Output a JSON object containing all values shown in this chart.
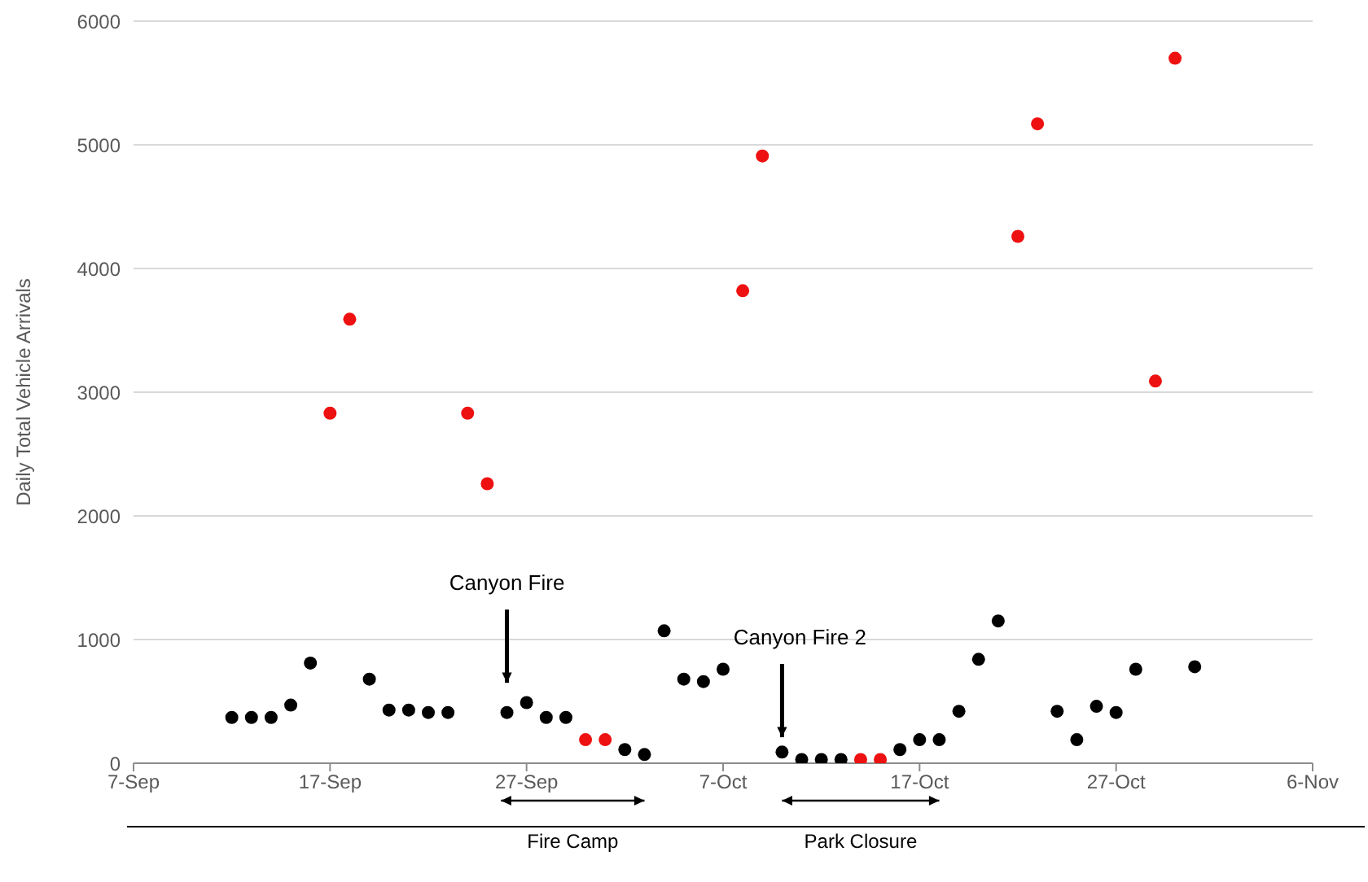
{
  "chart_data": {
    "type": "scatter",
    "ylabel": "Daily Total Vehicle Arrivals",
    "x": [
      "--09-12",
      "--09-13",
      "--09-14",
      "--09-15",
      "--09-16",
      "--09-17",
      "--09-18",
      "--09-19",
      "--09-20",
      "--09-21",
      "--09-22",
      "--09-23",
      "--09-24",
      "--09-25",
      "--09-26",
      "--09-27",
      "--09-28",
      "--09-29",
      "--09-30",
      "--10-01",
      "--10-02",
      "--10-03",
      "--10-04",
      "--10-05",
      "--10-06",
      "--10-07",
      "--10-08",
      "--10-09",
      "--10-10",
      "--10-11",
      "--10-12",
      "--10-13",
      "--10-14",
      "--10-15",
      "--10-16",
      "--10-17",
      "--10-18",
      "--10-19",
      "--10-20",
      "--10-21",
      "--10-22",
      "--10-23",
      "--10-24",
      "--10-25",
      "--10-26",
      "--10-27",
      "--10-28",
      "--10-29",
      "--10-30",
      "--10-31"
    ],
    "series": [
      {
        "color": "#000000",
        "values": [
          370,
          370,
          370,
          470,
          810,
          null,
          null,
          680,
          430,
          430,
          410,
          410,
          null,
          null,
          410,
          490,
          370,
          370,
          null,
          null,
          110,
          70,
          1070,
          680,
          660,
          760,
          null,
          null,
          90,
          30,
          30,
          30,
          null,
          null,
          110,
          190,
          190,
          420,
          840,
          1150,
          null,
          null,
          420,
          190,
          460,
          410,
          760,
          null,
          null,
          780
        ]
      },
      {
        "color": "#ee1111",
        "values": [
          null,
          null,
          null,
          null,
          null,
          2830,
          3590,
          null,
          null,
          null,
          null,
          null,
          2830,
          2260,
          null,
          null,
          null,
          null,
          190,
          190,
          null,
          null,
          null,
          null,
          null,
          null,
          3820,
          4910,
          null,
          null,
          null,
          null,
          30,
          30,
          null,
          null,
          null,
          null,
          null,
          null,
          4260,
          5170,
          null,
          null,
          null,
          null,
          null,
          3090,
          5700,
          null
        ]
      }
    ],
    "xlim": [
      "--09-07",
      "--11-06"
    ],
    "xticks": [
      {
        "value": "--09-07",
        "label": "7-Sep"
      },
      {
        "value": "--09-17",
        "label": "17-Sep"
      },
      {
        "value": "--09-27",
        "label": "27-Sep"
      },
      {
        "value": "--10-07",
        "label": "7-Oct"
      },
      {
        "value": "--10-17",
        "label": "17-Oct"
      },
      {
        "value": "--10-27",
        "label": "27-Oct"
      },
      {
        "value": "--11-06",
        "label": "6-Nov"
      }
    ],
    "ylim": [
      0,
      6000
    ],
    "yticks": [
      0,
      1000,
      2000,
      3000,
      4000,
      5000,
      6000
    ],
    "grid": "y",
    "marker": "circle",
    "annotations": [
      "Canyon Fire",
      "Canyon Fire 2",
      "Fire Camp",
      "Park Closure"
    ]
  }
}
